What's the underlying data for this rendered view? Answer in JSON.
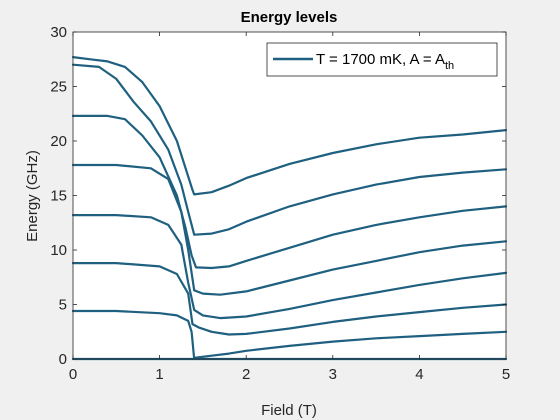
{
  "chart_data": {
    "type": "line",
    "title": "Energy levels",
    "xlabel": "Field (T)",
    "ylabel": "Energy (GHz)",
    "xlim": [
      0,
      5
    ],
    "ylim": [
      0,
      30
    ],
    "xticks": [
      0,
      1,
      2,
      3,
      4,
      5
    ],
    "yticks": [
      0,
      5,
      10,
      15,
      20,
      25,
      30
    ],
    "grid": false,
    "legend": {
      "position": "top-right",
      "entries": [
        {
          "main": "T = 1700 mK,  A = A",
          "sub": "th"
        }
      ]
    },
    "line_color": "#1f6080",
    "series": [
      {
        "x": [
          0,
          5
        ],
        "values": [
          0,
          0
        ]
      },
      {
        "x": [
          0,
          0.5,
          1.0,
          1.2,
          1.33,
          1.37,
          1.4
        ],
        "values": [
          4.4,
          4.4,
          4.2,
          4.0,
          3.5,
          2.5,
          0
        ]
      },
      {
        "x": [
          1.4,
          1.6,
          1.8,
          2.0,
          2.5,
          3.0,
          3.5,
          4.0,
          4.5,
          5.0
        ],
        "values": [
          0.1,
          0.3,
          0.5,
          0.75,
          1.2,
          1.6,
          1.9,
          2.1,
          2.3,
          2.5
        ]
      },
      {
        "x": [
          0,
          0.5,
          1.0,
          1.2,
          1.33,
          1.38,
          1.45,
          1.6,
          1.8,
          2.0,
          2.5,
          3.0,
          3.5,
          4.0,
          4.5,
          5.0
        ],
        "values": [
          8.8,
          8.8,
          8.5,
          7.8,
          6.0,
          3.2,
          2.9,
          2.5,
          2.25,
          2.3,
          2.8,
          3.4,
          3.9,
          4.3,
          4.7,
          5.0
        ]
      },
      {
        "x": [
          0,
          0.5,
          0.9,
          1.1,
          1.25,
          1.33,
          1.4,
          1.5,
          1.7,
          2.0,
          2.5,
          3.0,
          3.5,
          4.0,
          4.5,
          5.0
        ],
        "values": [
          13.2,
          13.2,
          13.0,
          12.3,
          10.5,
          7.0,
          4.5,
          4.0,
          3.75,
          3.9,
          4.6,
          5.4,
          6.1,
          6.8,
          7.4,
          7.9
        ]
      },
      {
        "x": [
          0,
          0.5,
          0.9,
          1.1,
          1.25,
          1.33,
          1.4,
          1.5,
          1.7,
          2.0,
          2.5,
          3.0,
          3.5,
          4.0,
          4.5,
          5.0
        ],
        "values": [
          17.8,
          17.8,
          17.5,
          16.5,
          13.5,
          10.0,
          6.3,
          6.0,
          5.9,
          6.2,
          7.2,
          8.2,
          9.0,
          9.8,
          10.4,
          10.8
        ]
      },
      {
        "x": [
          0,
          0.4,
          0.6,
          0.8,
          1.0,
          1.2,
          1.3,
          1.37,
          1.42,
          1.6,
          1.8,
          2.0,
          2.5,
          3.0,
          3.5,
          4.0,
          4.5,
          5.0
        ],
        "values": [
          22.3,
          22.3,
          22.0,
          20.5,
          18.5,
          15.0,
          12.0,
          9.5,
          8.4,
          8.35,
          8.5,
          9.0,
          10.2,
          11.4,
          12.3,
          13.0,
          13.6,
          14.0
        ]
      },
      {
        "x": [
          0,
          0.3,
          0.5,
          0.7,
          0.9,
          1.1,
          1.25,
          1.33,
          1.4,
          1.6,
          1.8,
          2.0,
          2.5,
          3.0,
          3.5,
          4.0,
          4.5,
          5.0
        ],
        "values": [
          27.0,
          26.8,
          25.7,
          23.6,
          21.8,
          19.2,
          16.0,
          13.5,
          11.4,
          11.5,
          11.9,
          12.6,
          14.0,
          15.1,
          16.0,
          16.7,
          17.1,
          17.4
        ]
      },
      {
        "x": [
          0,
          0.2,
          0.4,
          0.6,
          0.8,
          1.0,
          1.2,
          1.32,
          1.38,
          1.4,
          1.6,
          1.8,
          2.0,
          2.5,
          3.0,
          3.5,
          4.0,
          4.5,
          5.0
        ],
        "values": [
          27.7,
          27.5,
          27.3,
          26.8,
          25.4,
          23.2,
          20.0,
          17.0,
          15.5,
          15.1,
          15.3,
          15.9,
          16.6,
          17.9,
          18.9,
          19.7,
          20.3,
          20.6,
          21.0
        ]
      }
    ]
  }
}
